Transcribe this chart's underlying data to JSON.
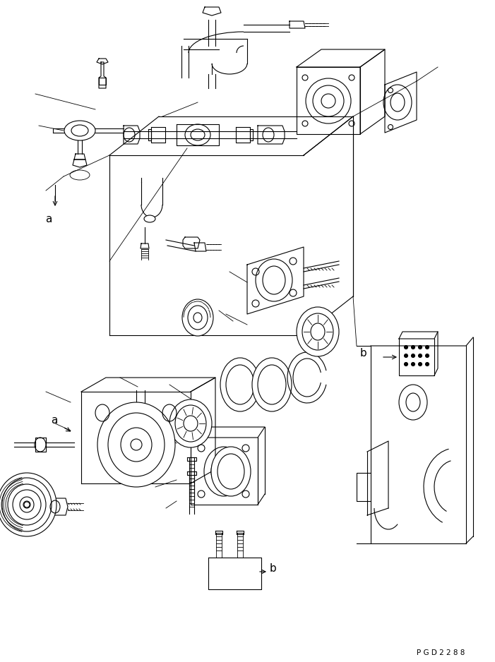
{
  "bg_color": "#ffffff",
  "line_color": "#000000",
  "fig_width": 7.01,
  "fig_height": 9.38,
  "dpi": 100,
  "watermark": "P G D 2 2 8 8",
  "label_a1": "a",
  "label_a2": "a",
  "label_b1": "b",
  "label_b2": "b"
}
